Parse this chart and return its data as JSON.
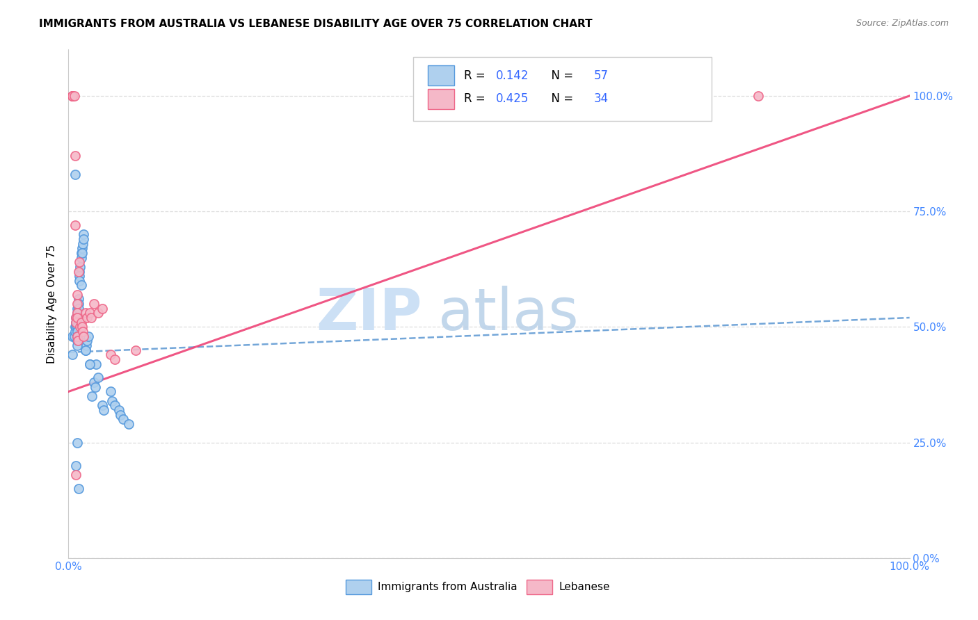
{
  "title": "IMMIGRANTS FROM AUSTRALIA VS LEBANESE DISABILITY AGE OVER 75 CORRELATION CHART",
  "source": "Source: ZipAtlas.com",
  "ylabel": "Disability Age Over 75",
  "blue_color": "#afd0ee",
  "pink_color": "#f5b8c8",
  "blue_edge_color": "#5599dd",
  "pink_edge_color": "#ee6688",
  "blue_line_color": "#4488cc",
  "pink_line_color": "#ee4477",
  "grid_color": "#dddddd",
  "legend_label1": "Immigrants from Australia",
  "legend_label2": "Lebanese",
  "watermark_zip_color": "#cce0f5",
  "watermark_atlas_color": "#b8d0e8",
  "aus_x": [
    0.5,
    0.5,
    0.7,
    0.8,
    0.8,
    0.9,
    0.9,
    0.9,
    1.0,
    1.0,
    1.0,
    1.0,
    1.0,
    1.0,
    1.0,
    1.0,
    1.0,
    1.2,
    1.2,
    1.2,
    1.3,
    1.3,
    1.3,
    1.4,
    1.5,
    1.5,
    1.6,
    1.7,
    1.8,
    2.0,
    2.1,
    2.2,
    2.4,
    2.5,
    2.8,
    3.0,
    3.2,
    3.3,
    3.5,
    4.0,
    4.2,
    5.0,
    5.2,
    5.5,
    6.0,
    6.2,
    6.5,
    7.2,
    0.8,
    0.9,
    1.0,
    1.2,
    1.5,
    1.6,
    1.8,
    2.0,
    2.5
  ],
  "aus_y": [
    48,
    44,
    48,
    50,
    49,
    52,
    51,
    50,
    54,
    53,
    52,
    51,
    50,
    49,
    48,
    47,
    46,
    56,
    55,
    54,
    62,
    61,
    60,
    63,
    66,
    65,
    67,
    68,
    70,
    45,
    46,
    47,
    48,
    42,
    35,
    38,
    37,
    42,
    39,
    33,
    32,
    36,
    34,
    33,
    32,
    31,
    30,
    29,
    83,
    20,
    25,
    15,
    59,
    66,
    69,
    45,
    42
  ],
  "leb_x": [
    0.5,
    0.5,
    0.5,
    0.5,
    0.7,
    0.8,
    0.8,
    0.9,
    0.9,
    1.0,
    1.0,
    1.0,
    1.0,
    1.0,
    1.1,
    1.2,
    1.3,
    1.4,
    1.5,
    1.6,
    1.7,
    1.8,
    2.0,
    2.2,
    2.5,
    2.7,
    3.0,
    3.5,
    4.0,
    5.0,
    5.5,
    8.0,
    82.0,
    0.9
  ],
  "leb_y": [
    100,
    100,
    100,
    100,
    100,
    87,
    72,
    52,
    51,
    57,
    55,
    53,
    52,
    48,
    47,
    62,
    64,
    50,
    51,
    50,
    49,
    48,
    53,
    52,
    53,
    52,
    55,
    53,
    54,
    44,
    43,
    45,
    100,
    18
  ],
  "aus_line_x": [
    0,
    100
  ],
  "aus_line_y": [
    44.5,
    52.0
  ],
  "leb_line_x": [
    0,
    100
  ],
  "leb_line_y": [
    36.0,
    100.0
  ],
  "xlim": [
    0,
    100
  ],
  "ylim": [
    0,
    110
  ],
  "xticks": [
    0,
    10,
    20,
    30,
    40,
    50,
    60,
    70,
    80,
    90,
    100
  ],
  "yticks": [
    0,
    25,
    50,
    75,
    100
  ]
}
